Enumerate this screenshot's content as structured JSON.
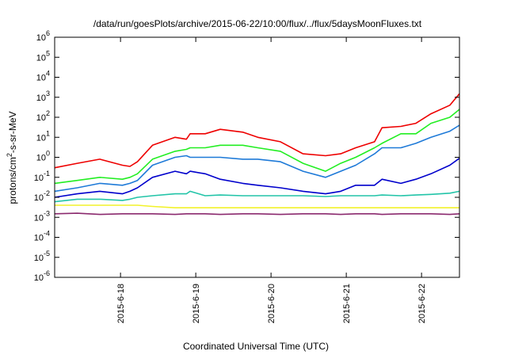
{
  "chart_data": {
    "type": "line",
    "title": "/data/run/goesPlots/archive/2015-06-22/10:00/flux/../flux/5daysMoonFluxes.txt",
    "xlabel": "Coordinated Universal Time (UTC)",
    "ylabel_html": [
      "protons/cm",
      "2",
      "-s-sr-MeV"
    ],
    "x_ticks": [
      "2015-6-18",
      "2015-6-19",
      "2015-6-20",
      "2015-6-21",
      "2015-6-22"
    ],
    "x_range": [
      "2015-06-17 03:00",
      "2015-06-22 12:00"
    ],
    "y_scale": "log",
    "y_range": [
      1e-06,
      1000000.0
    ],
    "y_ticks": [
      {
        "base": "10",
        "exp": "6"
      },
      {
        "base": "10",
        "exp": "5"
      },
      {
        "base": "10",
        "exp": "4"
      },
      {
        "base": "10",
        "exp": "3"
      },
      {
        "base": "10",
        "exp": "2"
      },
      {
        "base": "10",
        "exp": "1"
      },
      {
        "base": "10",
        "exp": "0"
      },
      {
        "base": "10",
        "exp": "-1"
      },
      {
        "base": "10",
        "exp": "-2"
      },
      {
        "base": "10",
        "exp": "-3"
      },
      {
        "base": "10",
        "exp": "-4"
      },
      {
        "base": "10",
        "exp": "-5"
      },
      {
        "base": "10",
        "exp": "-6"
      }
    ],
    "grid": false,
    "legend": "none",
    "x_day_values": [
      0.0,
      0.3,
      0.6,
      0.9,
      1.0,
      1.1,
      1.3,
      1.6,
      1.75,
      1.8,
      2.0,
      2.2,
      2.5,
      2.7,
      3.0,
      3.3,
      3.6,
      3.8,
      4.0,
      4.25,
      4.35,
      4.6,
      4.8,
      5.0,
      5.25,
      5.4
    ],
    "series": [
      {
        "color": "#ee0000",
        "values": [
          0.3,
          0.5,
          0.8,
          0.4,
          0.35,
          0.6,
          4.0,
          10.0,
          8.0,
          15.0,
          15.0,
          25.0,
          18.0,
          10.0,
          6.0,
          1.5,
          1.2,
          1.5,
          3.0,
          6.0,
          30.0,
          35.0,
          50.0,
          150.0,
          400.0,
          1500.0
        ]
      },
      {
        "color": "#22ee22",
        "values": [
          0.05,
          0.07,
          0.1,
          0.08,
          0.1,
          0.15,
          0.8,
          2.0,
          2.5,
          3.0,
          3.0,
          4.0,
          4.0,
          3.0,
          2.0,
          0.5,
          0.2,
          0.5,
          1.0,
          3.0,
          5.0,
          15.0,
          15.0,
          50.0,
          100.0,
          250.0
        ]
      },
      {
        "color": "#1e7ad8",
        "values": [
          0.02,
          0.03,
          0.05,
          0.04,
          0.05,
          0.07,
          0.4,
          1.0,
          1.2,
          1.0,
          1.0,
          1.0,
          0.8,
          0.8,
          0.6,
          0.2,
          0.1,
          0.2,
          0.4,
          1.5,
          3.0,
          3.0,
          5.0,
          10.0,
          20.0,
          40.0
        ]
      },
      {
        "color": "#0000cc",
        "values": [
          0.01,
          0.015,
          0.02,
          0.015,
          0.02,
          0.03,
          0.1,
          0.2,
          0.15,
          0.2,
          0.15,
          0.08,
          0.05,
          0.04,
          0.03,
          0.02,
          0.015,
          0.02,
          0.04,
          0.04,
          0.08,
          0.05,
          0.08,
          0.15,
          0.4,
          0.9
        ]
      },
      {
        "color": "#22c4a8",
        "values": [
          0.006,
          0.008,
          0.008,
          0.007,
          0.008,
          0.01,
          0.012,
          0.015,
          0.015,
          0.02,
          0.012,
          0.013,
          0.012,
          0.012,
          0.012,
          0.012,
          0.011,
          0.012,
          0.012,
          0.012,
          0.013,
          0.012,
          0.013,
          0.014,
          0.016,
          0.02
        ]
      },
      {
        "color": "#f2f22a",
        "values": [
          0.004,
          0.004,
          0.004,
          0.004,
          0.004,
          0.004,
          0.0035,
          0.003,
          0.003,
          0.003,
          0.003,
          0.003,
          0.003,
          0.003,
          0.003,
          0.003,
          0.003,
          0.003,
          0.003,
          0.003,
          0.003,
          0.003,
          0.003,
          0.003,
          0.003,
          0.003
        ]
      },
      {
        "color": "#8b2a6e",
        "values": [
          0.0015,
          0.0016,
          0.0014,
          0.0015,
          0.0015,
          0.0015,
          0.0015,
          0.0014,
          0.0015,
          0.0015,
          0.0015,
          0.0014,
          0.0015,
          0.0015,
          0.0014,
          0.0015,
          0.0015,
          0.0014,
          0.0015,
          0.0015,
          0.0014,
          0.0015,
          0.0015,
          0.0015,
          0.0014,
          0.0015
        ]
      }
    ]
  }
}
